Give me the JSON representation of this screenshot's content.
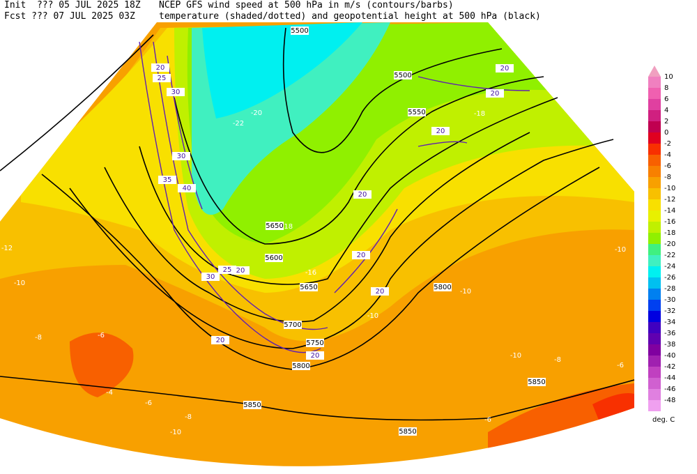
{
  "header": {
    "init": "Init  ??? 05 JUL 2025 18Z",
    "title": "NCEP GFS wind speed at 500 hPa in m/s (contours/barbs)",
    "fcst": "Fcst ??? 07 JUL 2025 03Z",
    "subtitle": "temperature (shaded/dotted) and geopotential height at 500 hPa (black)"
  },
  "colorbar": {
    "labels": [
      10,
      8,
      6,
      4,
      2,
      0,
      -2,
      -4,
      -6,
      -8,
      -10,
      -12,
      -14,
      -16,
      -18,
      -20,
      -22,
      -24,
      -26,
      -28,
      -30,
      -32,
      -34,
      -36,
      -38,
      -40,
      -42,
      -44,
      -46,
      -48
    ],
    "colors": [
      "#f080c0",
      "#f060b0",
      "#e040a0",
      "#d02080",
      "#c00050",
      "#e00020",
      "#f83000",
      "#f86000",
      "#f88000",
      "#f8a000",
      "#f8c000",
      "#f8e000",
      "#e8f000",
      "#c0f000",
      "#90f000",
      "#40f080",
      "#40f0c0",
      "#00f0f0",
      "#00c0f0",
      "#0080f0",
      "#0040f0",
      "#0000e0",
      "#4000c0",
      "#6000b0",
      "#8000a0",
      "#a020b0",
      "#c040c0",
      "#d060d0",
      "#e080e0",
      "#f0a0f0"
    ],
    "unit": "deg. C"
  },
  "map": {
    "height_labels": [
      5500,
      5500,
      5550,
      5650,
      5600,
      5650,
      5700,
      5750,
      5800,
      5800,
      5850,
      5850,
      5850
    ],
    "wind_labels": [
      20,
      25,
      30,
      30,
      35,
      40,
      25,
      20,
      30,
      20,
      20,
      20,
      20,
      20,
      20,
      20,
      20
    ],
    "temperature_labels": [
      -12,
      -10,
      -8,
      -6,
      -4,
      -6,
      -8,
      -10,
      -22,
      -20,
      -18,
      -16,
      -10,
      -10,
      -10,
      -10,
      -8,
      -6,
      -6,
      -18
    ]
  }
}
